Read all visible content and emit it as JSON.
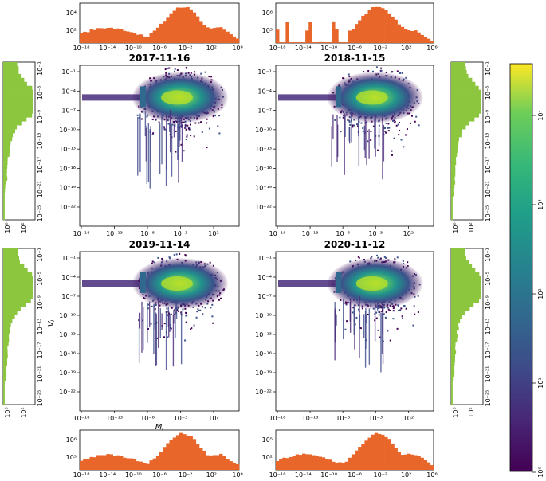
{
  "colors": {
    "histogram_top_bottom": "#e8662a",
    "histogram_side": "#8cc63f",
    "background": "#ffffff"
  },
  "chart_data": [
    {
      "type": "heatmap",
      "title": "2017-11-16",
      "xscale": "log",
      "yscale": "log",
      "xlim_exp": [
        -18,
        6
      ],
      "ylim_exp": [
        -25,
        0
      ],
      "xticks": [
        "10⁻¹⁸",
        "10⁻¹³",
        "10⁻⁸",
        "10⁻³",
        "10²"
      ],
      "yticks": [
        "10⁻¹",
        "10⁻⁴",
        "10⁻⁷",
        "10⁻¹⁰",
        "10⁻¹³",
        "10⁻¹⁶",
        "10⁻¹⁹",
        "10⁻²²"
      ],
      "top_hist": {
        "yticks": [
          "10⁴",
          "10²"
        ],
        "xticks": [
          "10⁻¹⁸",
          "10⁻¹⁴",
          "10⁻¹⁰",
          "10⁻⁶",
          "10⁻²",
          "10²",
          "10⁶"
        ]
      },
      "side_hist": {
        "yticks": [
          "10⁻¹",
          "10⁻⁵",
          "10⁻⁹",
          "10⁻¹³",
          "10⁻¹⁷",
          "10⁻²¹",
          "10⁻²⁵"
        ],
        "xticks": [
          "10⁰",
          "10²"
        ]
      }
    },
    {
      "type": "heatmap",
      "title": "2018-11-15",
      "xscale": "log",
      "yscale": "log",
      "xlim_exp": [
        -18,
        6
      ],
      "ylim_exp": [
        -25,
        0
      ],
      "xticks": [
        "10⁻¹⁸",
        "10⁻¹³",
        "10⁻⁸",
        "10⁻³",
        "10²"
      ],
      "yticks": [
        "10⁻¹",
        "10⁻⁴",
        "10⁻⁷",
        "10⁻¹⁰",
        "10⁻¹³",
        "10⁻¹⁶",
        "10⁻¹⁹",
        "10⁻²²"
      ],
      "top_hist": {
        "yticks": [
          "10⁶",
          "10³"
        ],
        "xticks": [
          "10⁻¹⁸",
          "10⁻¹⁴",
          "10⁻¹⁰",
          "10⁻⁶",
          "10⁻²",
          "10²",
          "10⁶"
        ]
      },
      "side_hist": {
        "yticks": [
          "10⁻¹",
          "10⁻⁵",
          "10⁻⁹",
          "10⁻¹³",
          "10⁻¹⁷",
          "10⁻²¹",
          "10⁻²⁵"
        ],
        "xticks": [
          "10⁰",
          "10²"
        ]
      }
    },
    {
      "type": "heatmap",
      "title": "2019-11-14",
      "xscale": "log",
      "yscale": "log",
      "xlim_exp": [
        -18,
        6
      ],
      "ylim_exp": [
        -25,
        0
      ],
      "xlabel": "Mⱼ",
      "ylabel": "Vⱼ",
      "xticks": [
        "10⁻¹⁸",
        "10⁻¹³",
        "10⁻⁸",
        "10⁻³",
        "10²"
      ],
      "yticks": [
        "10⁻¹",
        "10⁻⁴",
        "10⁻⁷",
        "10⁻¹⁰",
        "10⁻¹³",
        "10⁻¹⁶",
        "10⁻¹⁹",
        "10⁻²²"
      ],
      "bottom_hist": {
        "yticks": [
          "10⁶",
          "10³"
        ],
        "xticks": [
          "10⁻¹⁸",
          "10⁻¹⁴",
          "10⁻¹⁰",
          "10⁻⁶",
          "10⁻²",
          "10²",
          "10⁶"
        ]
      },
      "side_hist": {
        "yticks": [
          "10⁻¹",
          "10⁻⁵",
          "10⁻⁹",
          "10⁻¹³",
          "10⁻¹⁷",
          "10⁻²¹",
          "10⁻²⁵"
        ],
        "xticks": [
          "10⁰",
          "10²"
        ]
      }
    },
    {
      "type": "heatmap",
      "title": "2020-11-12",
      "xscale": "log",
      "yscale": "log",
      "xlim_exp": [
        -18,
        6
      ],
      "ylim_exp": [
        -25,
        0
      ],
      "xticks": [
        "10⁻¹⁸",
        "10⁻¹³",
        "10⁻⁸",
        "10⁻³",
        "10²"
      ],
      "yticks": [
        "10⁻¹",
        "10⁻⁴",
        "10⁻⁷",
        "10⁻¹⁰",
        "10⁻¹³",
        "10⁻¹⁶",
        "10⁻¹⁹",
        "10⁻²²"
      ],
      "bottom_hist": {
        "yticks": [
          "10⁵",
          "10²"
        ],
        "xticks": [
          "10⁻¹⁸",
          "10⁻¹⁴",
          "10⁻¹⁰",
          "10⁻⁶",
          "10⁻²",
          "10²",
          "10⁶"
        ]
      },
      "side_hist": {
        "yticks": [
          "10⁻¹",
          "10⁻⁵",
          "10⁻⁹",
          "10⁻¹³",
          "10⁻¹⁷",
          "10⁻²¹",
          "10⁻²⁵"
        ],
        "xticks": [
          "10⁰",
          "10²"
        ]
      }
    }
  ],
  "colorbar": {
    "scale": "log",
    "colormap": "viridis",
    "range_exp": [
      0,
      4.6
    ],
    "ticks": [
      "10⁴",
      "10³",
      "10²",
      "10¹",
      "10⁰"
    ]
  }
}
